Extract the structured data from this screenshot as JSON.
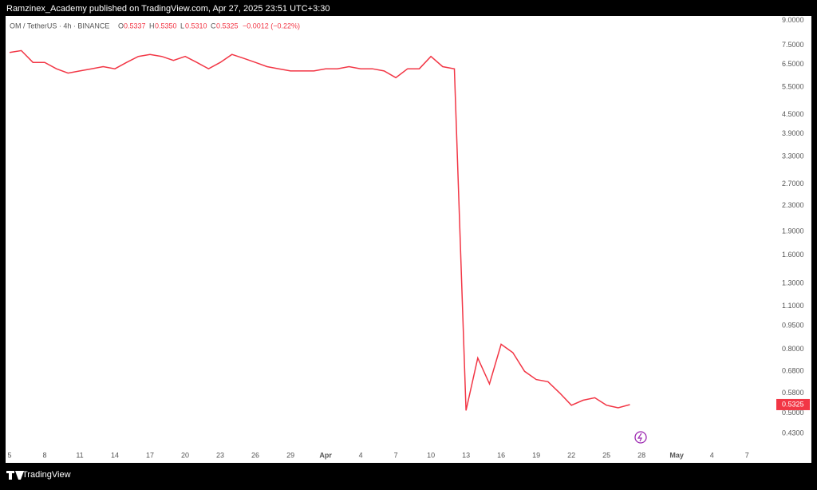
{
  "header": {
    "publisher": "Ramzinex_Academy published on TradingView.com, Apr 27, 2025 23:51 UTC+3:30"
  },
  "legend": {
    "symbol": "OM / TetherUS · 4h · BINANCE",
    "o_label": "O",
    "open": "0.5337",
    "h_label": "H",
    "high": "0.5350",
    "l_label": "L",
    "low": "0.5310",
    "c_label": "C",
    "close": "0.5325",
    "change": "−0.0012 (−0.22%)"
  },
  "footer": {
    "brand": "TradingView"
  },
  "chart_data": {
    "type": "line",
    "log_scale": true,
    "grid": false,
    "last_price": 0.5325,
    "last_price_color": "#f23645",
    "categories": [
      "5",
      null,
      null,
      "8",
      null,
      null,
      "11",
      null,
      null,
      "14",
      null,
      null,
      "17",
      null,
      null,
      "20",
      null,
      null,
      "23",
      null,
      null,
      "26",
      null,
      null,
      "29",
      null,
      null,
      "Apr",
      null,
      null,
      "4",
      null,
      null,
      "7",
      null,
      null,
      "10",
      null,
      null,
      "13",
      null,
      null,
      "16",
      null,
      null,
      "19",
      null,
      null,
      "22",
      null,
      null,
      "25",
      null,
      null,
      "28",
      null,
      null,
      "May",
      null,
      null,
      "4",
      null,
      null,
      "7"
    ],
    "series": [
      {
        "name": "OM / TetherUS",
        "color": "#f23645",
        "values": [
          7.1,
          7.2,
          6.6,
          6.6,
          6.3,
          6.1,
          6.2,
          6.3,
          6.4,
          6.3,
          6.6,
          6.9,
          7.0,
          6.9,
          6.7,
          6.9,
          6.6,
          6.3,
          6.6,
          7.0,
          6.8,
          6.6,
          6.4,
          6.3,
          6.2,
          6.2,
          6.2,
          6.3,
          6.3,
          6.4,
          6.3,
          6.3,
          6.2,
          5.9,
          6.3,
          6.3,
          6.9,
          6.4,
          6.3,
          0.51,
          0.75,
          0.62,
          0.83,
          0.78,
          0.68,
          0.64,
          0.63,
          0.58,
          0.53,
          0.55,
          0.56,
          0.53,
          0.52,
          0.5325,
          null,
          null,
          null,
          null,
          null,
          null,
          null,
          null,
          null,
          null
        ]
      }
    ],
    "ylim": [
      0.39,
      9.4
    ],
    "yticks": [
      {
        "value": 9,
        "label": "9.0000"
      },
      {
        "value": 7.5,
        "label": "7.5000"
      },
      {
        "value": 6.5,
        "label": "6.5000"
      },
      {
        "value": 5.5,
        "label": "5.5000"
      },
      {
        "value": 4.5,
        "label": "4.5000"
      },
      {
        "value": 3.9,
        "label": "3.9000"
      },
      {
        "value": 3.3,
        "label": "3.3000"
      },
      {
        "value": 2.7,
        "label": "2.7000"
      },
      {
        "value": 2.3,
        "label": "2.3000"
      },
      {
        "value": 1.9,
        "label": "1.9000"
      },
      {
        "value": 1.6,
        "label": "1.6000"
      },
      {
        "value": 1.3,
        "label": "1.3000"
      },
      {
        "value": 1.1,
        "label": "1.1000"
      },
      {
        "value": 0.95,
        "label": "0.9500"
      },
      {
        "value": 0.8,
        "label": "0.8000"
      },
      {
        "value": 0.68,
        "label": "0.6800"
      },
      {
        "value": 0.58,
        "label": "0.5800"
      },
      {
        "value": 0.5,
        "label": "0.5000"
      },
      {
        "value": 0.43,
        "label": "0.4300"
      }
    ]
  }
}
